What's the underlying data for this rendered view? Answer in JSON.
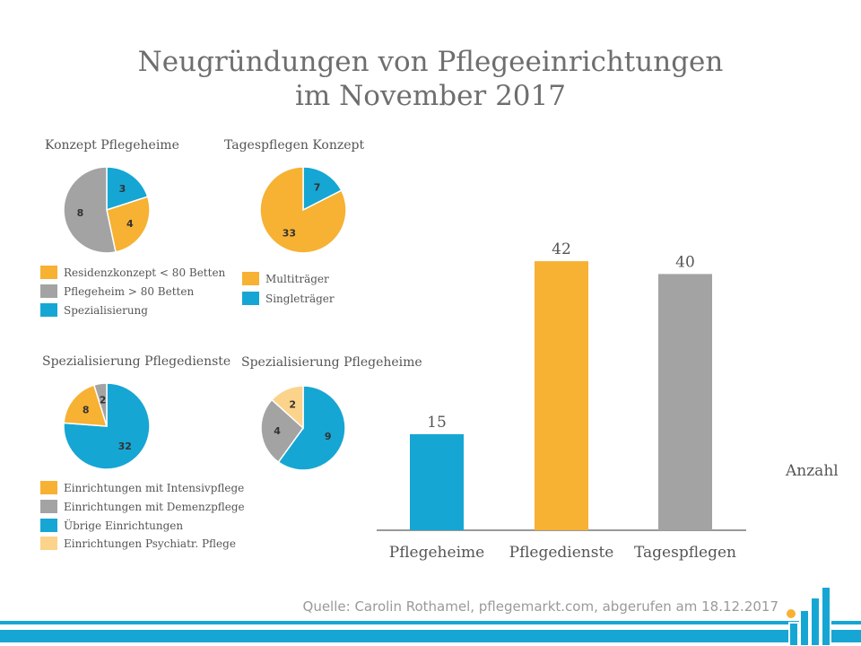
{
  "title_line1": "Neugründungen von Pflegeeinrichtungen",
  "title_line2": "im November 2017",
  "source": "Quelle: Carolin Rothamel, pflegemarkt.com, abgerufen am 18.12.2017",
  "colors": {
    "blue": "#16a6d4",
    "orange": "#f7b133",
    "gray": "#a3a3a3",
    "lightorange": "#fbd38a",
    "footer": "#16a6d4"
  },
  "chart_data": [
    {
      "type": "pie",
      "title": "Konzept Pflegeheime",
      "slices": [
        {
          "label": "Spezialisierung",
          "value": 3,
          "color": "#16a6d4"
        },
        {
          "label": "Residenzkonzept < 80 Betten",
          "value": 4,
          "color": "#f7b133"
        },
        {
          "label": "Pflegeheim > 80 Betten",
          "value": 8,
          "color": "#a3a3a3"
        }
      ],
      "legend": [
        "Residenzkonzept < 80 Betten",
        "Pflegeheim > 80 Betten",
        "Spezialisierung"
      ],
      "legend_colors": [
        "#f7b133",
        "#a3a3a3",
        "#16a6d4"
      ]
    },
    {
      "type": "pie",
      "title": "Tagespflegen Konzept",
      "slices": [
        {
          "label": "Singleträger",
          "value": 7,
          "color": "#16a6d4"
        },
        {
          "label": "Multiträger",
          "value": 33,
          "color": "#f7b133"
        }
      ],
      "legend": [
        "Multiträger",
        "Singleträger"
      ],
      "legend_colors": [
        "#f7b133",
        "#16a6d4"
      ]
    },
    {
      "type": "pie",
      "title": "Spezialisierung Pflegedienste",
      "slices": [
        {
          "label": "Übrige Einrichtungen",
          "value": 32,
          "color": "#16a6d4"
        },
        {
          "label": "Einrichtungen mit Intensivpflege",
          "value": 8,
          "color": "#f7b133"
        },
        {
          "label": "Einrichtungen mit Demenzpflege",
          "value": 2,
          "color": "#a3a3a3"
        }
      ]
    },
    {
      "type": "pie",
      "title": "Spezialisierung Pflegeheime",
      "slices": [
        {
          "label": "Übrige Einrichtungen",
          "value": 9,
          "color": "#16a6d4"
        },
        {
          "label": "Einrichtungen mit Demenzpflege",
          "value": 4,
          "color": "#a3a3a3"
        },
        {
          "label": "Einrichtungen Psychiatr. Pflege",
          "value": 2,
          "color": "#fbd38a"
        }
      ]
    },
    {
      "type": "bar",
      "categories": [
        "Pflegeheime",
        "Pflegedienste",
        "Tagespflegen"
      ],
      "values": [
        15,
        42,
        40
      ],
      "colors": [
        "#16a6d4",
        "#f7b133",
        "#a3a3a3"
      ],
      "series_label": "Anzahl",
      "ylim": [
        0,
        50
      ]
    }
  ],
  "shared_legend": {
    "items": [
      "Einrichtungen  mit Intensivpflege",
      "Einrichtungen  mit Demenzpflege",
      "Übrige Einrichtungen",
      "Einrichtungen  Psychiatr.  Pflege"
    ],
    "colors": [
      "#f7b133",
      "#a3a3a3",
      "#16a6d4",
      "#fbd38a"
    ]
  }
}
